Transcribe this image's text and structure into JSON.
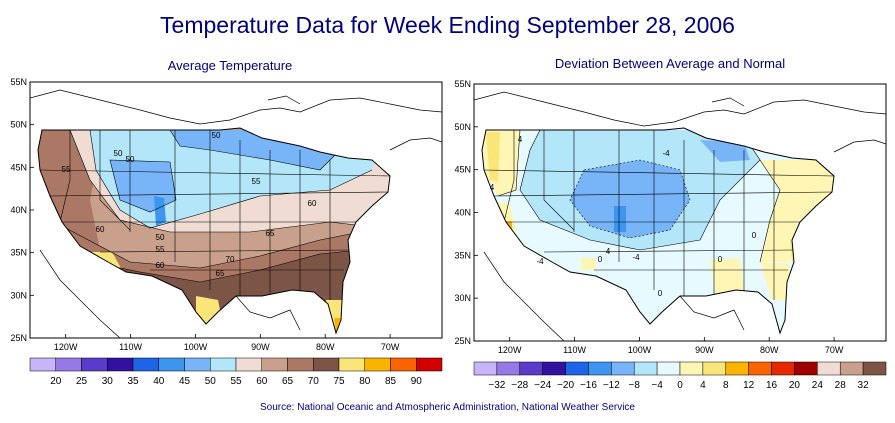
{
  "title": "Temperature Data for Week Ending September 28, 2006",
  "left_panel": {
    "subtitle": "Average Temperature",
    "lat_labels": [
      "55N",
      "50N",
      "45N",
      "40N",
      "35N",
      "30N",
      "25N"
    ],
    "lon_labels": [
      "120W",
      "110W",
      "100W",
      "90W",
      "80W",
      "70W"
    ],
    "contour_labels": [
      "50",
      "50",
      "55",
      "55",
      "60",
      "65",
      "50",
      "55",
      "60",
      "70",
      "65",
      "60",
      "50"
    ],
    "legend_values": [
      "20",
      "25",
      "30",
      "35",
      "40",
      "45",
      "50",
      "55",
      "60",
      "65",
      "70",
      "75",
      "80",
      "85",
      "90"
    ],
    "legend_colors": [
      "#c8b4f8",
      "#9678e6",
      "#5a3cc8",
      "#3210a0",
      "#1e64e6",
      "#3c96f0",
      "#78b4f8",
      "#b4e6fa",
      "#f0dcd2",
      "#c8a08c",
      "#aa7864",
      "#7d5546",
      "#fae678",
      "#fab400",
      "#fa6400",
      "#d20000"
    ]
  },
  "right_panel": {
    "subtitle": "Deviation Between Average and Normal",
    "lat_labels": [
      "55N",
      "50N",
      "45N",
      "40N",
      "35N",
      "30N",
      "25N"
    ],
    "lon_labels": [
      "120W",
      "110W",
      "100W",
      "90W",
      "80W",
      "70W"
    ],
    "contour_labels": [
      "4",
      "4",
      "-4",
      "-4",
      "0",
      "4",
      "-4",
      "0",
      "0",
      "0"
    ],
    "legend_values": [
      "−32",
      "−28",
      "−24",
      "−20",
      "−16",
      "−12",
      "−8",
      "−4",
      "0",
      "4",
      "8",
      "12",
      "16",
      "20",
      "24",
      "28",
      "32"
    ],
    "legend_colors": [
      "#c8b4f8",
      "#9678e6",
      "#5a3cc8",
      "#3210a0",
      "#1e64e6",
      "#3c96f0",
      "#78b4f8",
      "#b4e6fa",
      "#e6faff",
      "#fff5b4",
      "#fae678",
      "#fab400",
      "#fa6400",
      "#e62800",
      "#a00000",
      "#f0dcd2",
      "#c8a08c",
      "#7d5546"
    ]
  },
  "source": "Source:  National Oceanic and Atmospheric Administration, National Weather Service"
}
